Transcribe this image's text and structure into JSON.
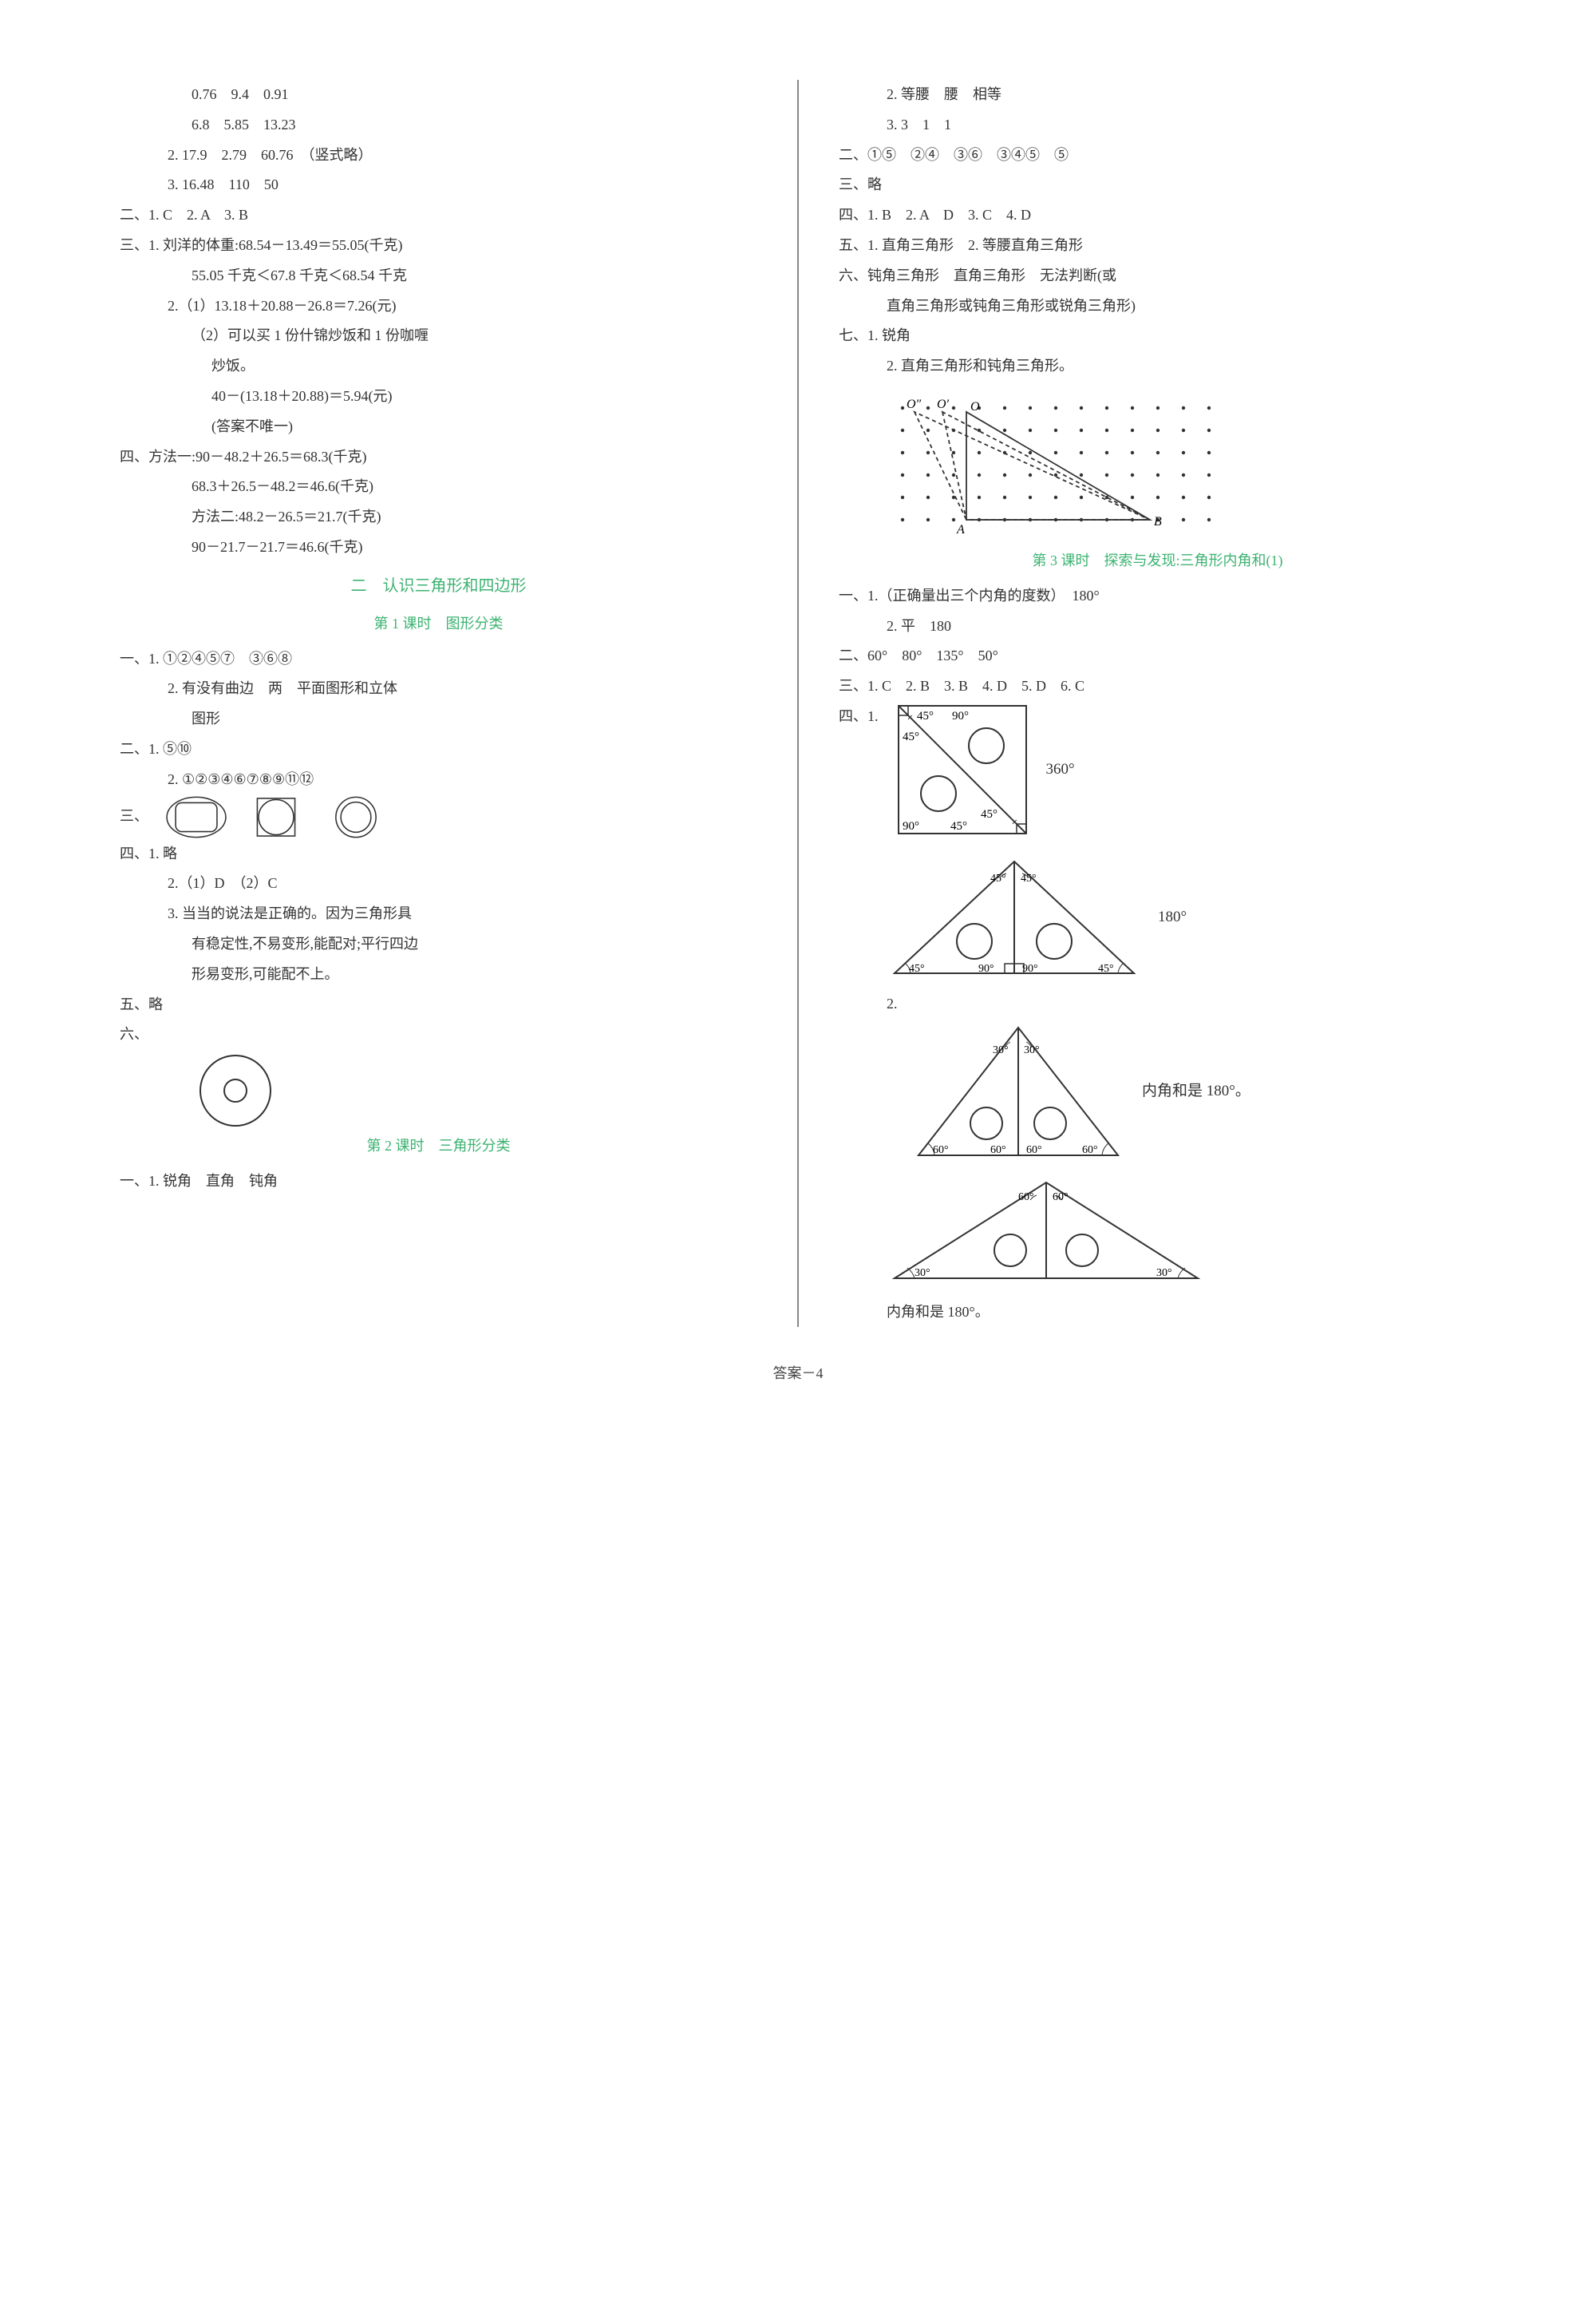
{
  "left": {
    "l1": "0.76　9.4　0.91",
    "l2": "6.8　5.85　13.23",
    "l3": "2. 17.9　2.79　60.76　（竖式略）",
    "l4": "3. 16.48　110　50",
    "l5": "二、1. C　2. A　3. B",
    "l6": "三、1. 刘洋的体重:68.54－13.49＝55.05(千克)",
    "l7": "55.05 千克＜67.8 千克＜68.54 千克",
    "l8": "2.（1）13.18＋20.88－26.8＝7.26(元)",
    "l9": "（2）可以买 1 份什锦炒饭和 1 份咖喱",
    "l10": "炒饭。",
    "l11": "40－(13.18＋20.88)＝5.94(元)",
    "l12": "(答案不唯一)",
    "l13": "四、方法一:90－48.2＋26.5＝68.3(千克)",
    "l14": "68.3＋26.5－48.2＝46.6(千克)",
    "l15": "方法二:48.2－26.5＝21.7(千克)",
    "l16": "90－21.7－21.7＝46.6(千克)",
    "heading1": "二　认识三角形和四边形",
    "sub1": "第 1 课时　图形分类",
    "l17": "一、1. ①②④⑤⑦　③⑥⑧",
    "l18": "2. 有没有曲边　两　平面图形和立体",
    "l19": "图形",
    "l20": "二、1. ⑤⑩",
    "l21": "2. ①②③④⑥⑦⑧⑨⑪⑫",
    "l22": "三、",
    "l23": "四、1. 略",
    "l24": "2.（1）D　（2）C",
    "l25": "3. 当当的说法是正确的。因为三角形具",
    "l26": "有稳定性,不易变形,能配对;平行四边",
    "l27": "形易变形,可能配不上。",
    "l28": "五、略",
    "l29": "六、",
    "sub2": "第 2 课时　三角形分类",
    "l30": "一、1. 锐角　直角　钝角"
  },
  "right": {
    "r1": "2. 等腰　腰　相等",
    "r2": "3. 3　1　1",
    "r3": "二、①⑤　②④　③⑥　③④⑤　⑤",
    "r4": "三、略",
    "r5": "四、1. B　2. A　D　3. C　4. D",
    "r6": "五、1. 直角三角形　2. 等腰直角三角形",
    "r7": "六、钝角三角形　直角三角形　无法判断(或",
    "r8": "直角三角形或钝角三角形或锐角三角形)",
    "r9": "七、1. 锐角",
    "r10": "2. 直角三角形和钝角三角形。",
    "sub3": "第 3 课时　探索与发现:三角形内角和(1)",
    "r11": "一、1.（正确量出三个内角的度数）　180°",
    "r12": "2. 平　180",
    "r13": "二、60°　80°　135°　50°",
    "r14": "三、1. C　2. B　3. B　4. D　5. D　6. C",
    "r15": "四、1.",
    "ans1": "360°",
    "ans2": "180°",
    "r16": "2.",
    "ans3": "内角和是 180°。",
    "ans4": "内角和是 180°。",
    "diagram1": {
      "labels": [
        "O″",
        "O′",
        "O",
        "A",
        "B"
      ],
      "grid_rows": 6,
      "grid_cols": 13,
      "dot_color": "#333333"
    },
    "square_diagram": {
      "angles": [
        "45°",
        "90°",
        "45°",
        "45°",
        "45°",
        "90°"
      ],
      "line_color": "#333333"
    },
    "tri_diagram_1": {
      "angles": [
        "45°",
        "45°",
        "90°",
        "90°",
        "45°",
        "45°"
      ],
      "line_color": "#333333"
    },
    "tri_diagram_2": {
      "angles": [
        "30°",
        "30°",
        "60°",
        "60°",
        "60°",
        "60°"
      ],
      "line_color": "#333333"
    },
    "tri_diagram_3": {
      "angles": [
        "60°",
        "60°",
        "30°",
        "30°"
      ],
      "line_color": "#333333"
    }
  },
  "footer": "答案－4",
  "colors": {
    "text": "#333333",
    "green": "#3cb371",
    "divider": "#888888"
  }
}
